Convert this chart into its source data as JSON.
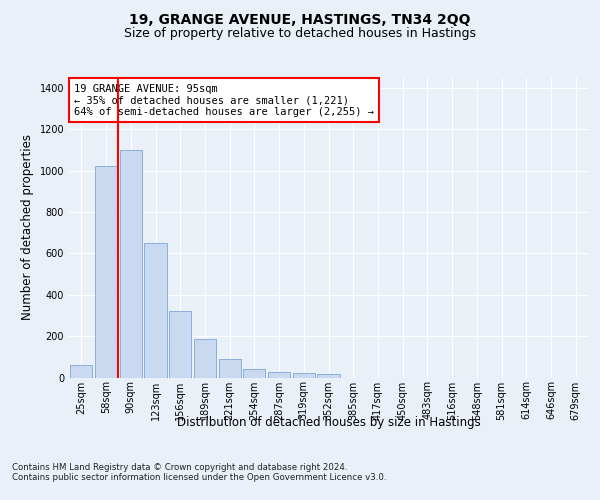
{
  "title_line1": "19, GRANGE AVENUE, HASTINGS, TN34 2QQ",
  "title_line2": "Size of property relative to detached houses in Hastings",
  "xlabel": "Distribution of detached houses by size in Hastings",
  "ylabel": "Number of detached properties",
  "footnote": "Contains HM Land Registry data © Crown copyright and database right 2024.\nContains public sector information licensed under the Open Government Licence v3.0.",
  "bin_labels": [
    "25sqm",
    "58sqm",
    "90sqm",
    "123sqm",
    "156sqm",
    "189sqm",
    "221sqm",
    "254sqm",
    "287sqm",
    "319sqm",
    "352sqm",
    "385sqm",
    "417sqm",
    "450sqm",
    "483sqm",
    "516sqm",
    "548sqm",
    "581sqm",
    "614sqm",
    "646sqm",
    "679sqm"
  ],
  "bar_values": [
    60,
    1020,
    1100,
    650,
    320,
    185,
    88,
    40,
    27,
    22,
    15,
    0,
    0,
    0,
    0,
    0,
    0,
    0,
    0,
    0,
    0
  ],
  "bar_color": "#c9d9f0",
  "bar_edge_color": "#7da6d4",
  "vline_color": "red",
  "annotation_text": "19 GRANGE AVENUE: 95sqm\n← 35% of detached houses are smaller (1,221)\n64% of semi-detached houses are larger (2,255) →",
  "annotation_box_color": "white",
  "annotation_box_edge_color": "red",
  "ylim": [
    0,
    1450
  ],
  "yticks": [
    0,
    200,
    400,
    600,
    800,
    1000,
    1200,
    1400
  ],
  "bg_color": "#eaf0f8",
  "plot_bg_color": "#eaf0f8",
  "grid_color": "white",
  "title_fontsize": 10,
  "subtitle_fontsize": 9,
  "axis_label_fontsize": 8.5,
  "tick_fontsize": 7,
  "annot_fontsize": 7.5
}
